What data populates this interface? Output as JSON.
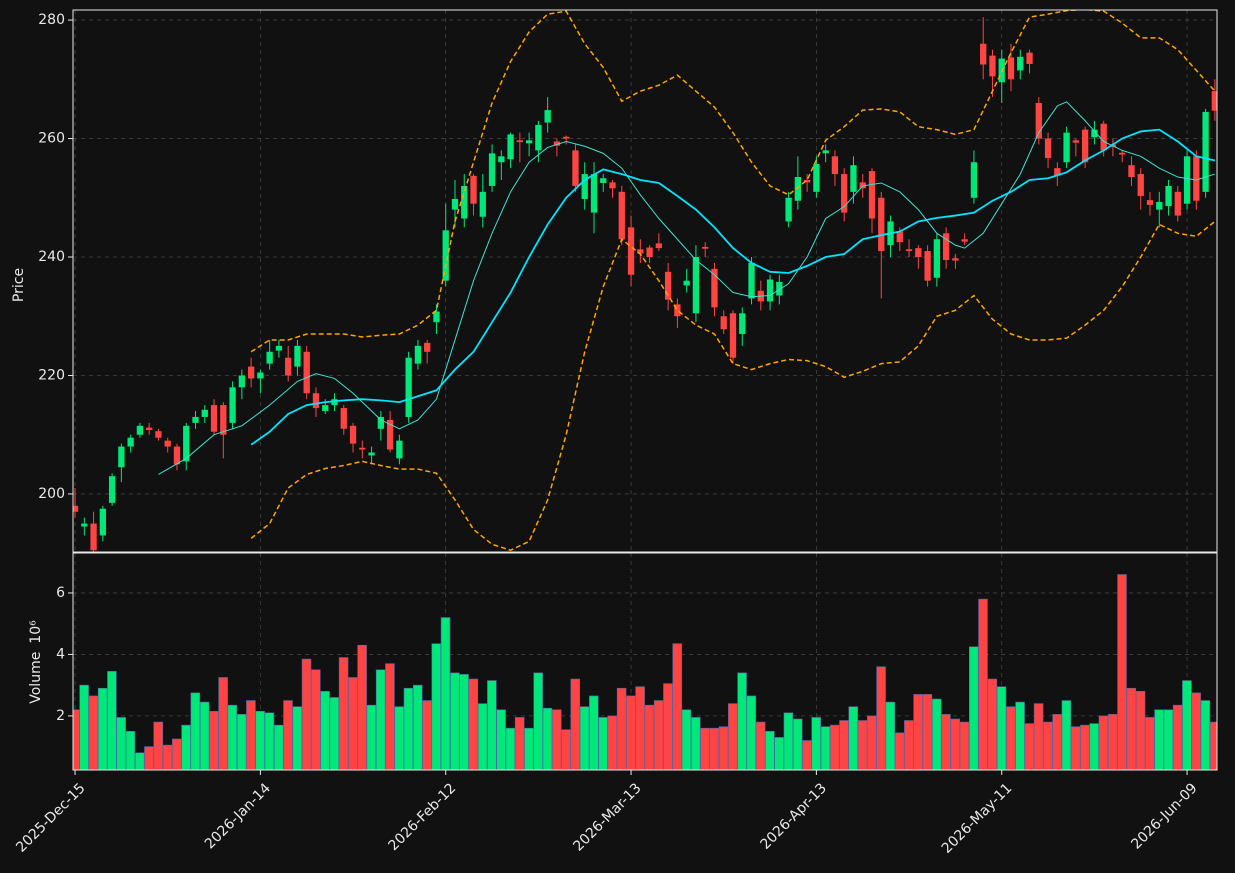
{
  "chart_data": {
    "type": "candlestick",
    "ylabel": "Price",
    "xlim": [
      -0.22,
      123.23
    ],
    "xticks": [
      {
        "value": 0,
        "label": "2025-Dec-15"
      },
      {
        "value": 20,
        "label": "2026-Jan-14"
      },
      {
        "value": 40,
        "label": "2026-Feb-12"
      },
      {
        "value": 60,
        "label": "2026-Mar-13"
      },
      {
        "value": 80,
        "label": "2026-Apr-13"
      },
      {
        "value": 100,
        "label": "2026-May-11"
      },
      {
        "value": 120,
        "label": "2026-Jun-09"
      }
    ],
    "ylim": [
      190.2,
      281.7
    ],
    "yticks": [
      200,
      220,
      240,
      260,
      280
    ],
    "grid": true,
    "up_color": "#00e87a",
    "down_color": "#ff4444",
    "open": [
      198,
      194.5,
      195,
      193,
      198.5,
      204.5,
      208,
      210,
      211.2,
      210.6,
      209,
      208,
      205.5,
      212,
      213,
      215,
      215,
      212,
      218,
      221.5,
      219.5,
      222,
      224.2,
      223,
      221.5,
      224,
      217,
      214,
      215,
      214.5,
      211.5,
      207.8,
      206.5,
      211,
      212.5,
      206,
      213,
      222,
      225.5,
      229,
      236,
      248,
      246.5,
      253.7,
      246.8,
      252,
      256,
      256.5,
      259.7,
      259.2,
      258,
      262.7,
      259.5,
      260.3,
      258,
      249.8,
      247.5,
      252.5,
      252.6,
      251,
      245,
      241.3,
      241.6,
      242.3,
      237.5,
      232,
      235.2,
      230.5,
      241.7,
      238,
      230,
      230.5,
      227,
      233,
      234.3,
      232.5,
      233.5,
      246,
      249.5,
      253,
      251,
      257.5,
      257,
      254,
      251,
      252.6,
      254.5,
      250,
      242,
      244.3,
      241.3,
      241.5,
      241,
      236.5,
      244,
      239.8,
      243,
      250,
      276,
      274,
      269.5,
      273.7,
      271.5,
      274.5,
      266,
      260,
      255,
      256,
      259.7,
      261.5,
      260.2,
      262.5,
      259,
      257.6,
      255.5,
      254,
      249.6,
      248,
      248.6,
      251,
      249,
      257,
      251,
      268
    ],
    "high": [
      201,
      196,
      197,
      198,
      203.5,
      208.5,
      210,
      212,
      212,
      211,
      209.5,
      208.5,
      212,
      214,
      215,
      216,
      215.5,
      219,
      221,
      223,
      221,
      226,
      226,
      225,
      226,
      225,
      218,
      216,
      217,
      215,
      212,
      209,
      208,
      214,
      214,
      210,
      224,
      226,
      226,
      232,
      249,
      253,
      254,
      254,
      254,
      259,
      258,
      261,
      261,
      261,
      263,
      267,
      260,
      260.5,
      259,
      256,
      256,
      254,
      253,
      252,
      247,
      243,
      242,
      244,
      239,
      233,
      238,
      242,
      242.5,
      239,
      231,
      231,
      231.5,
      240,
      236,
      237,
      237,
      251,
      257,
      254,
      257,
      259,
      258,
      255,
      257,
      254,
      255,
      251,
      247,
      245,
      243,
      242,
      242,
      244,
      245,
      240.5,
      244,
      258,
      280.5,
      275,
      275,
      276,
      275,
      275,
      267,
      261,
      256,
      262,
      260,
      262,
      263,
      263,
      260,
      258,
      257,
      255,
      251,
      251,
      253,
      252,
      258,
      258,
      265,
      270
    ],
    "low": [
      196,
      193,
      190,
      192,
      198,
      202,
      207,
      209.5,
      210,
      209,
      207,
      204,
      204,
      211,
      212,
      210,
      206,
      211,
      216,
      218,
      217,
      221,
      223,
      219,
      220,
      216,
      213,
      213.5,
      214,
      210,
      207,
      206,
      205,
      209,
      207,
      205,
      212,
      221,
      222,
      227,
      235,
      245,
      245,
      247,
      245,
      251,
      253,
      255,
      256,
      257,
      256,
      261,
      257,
      259,
      251,
      248,
      244,
      251,
      250,
      242,
      235,
      239,
      239,
      241,
      231,
      228,
      234,
      229,
      240,
      230,
      227,
      222,
      225,
      232,
      231,
      231,
      232,
      245,
      248,
      251,
      250,
      256,
      252,
      246,
      249,
      250,
      244,
      233,
      240,
      241,
      240,
      238,
      235,
      235,
      238,
      238,
      242,
      249,
      270,
      267,
      266,
      268,
      270,
      271,
      259,
      255,
      252,
      255,
      257,
      255,
      259,
      257,
      257,
      256,
      252,
      248,
      247,
      245,
      247,
      246,
      248,
      248,
      250,
      263
    ],
    "close": [
      197,
      195,
      190.5,
      197.5,
      203,
      208,
      209.5,
      211.5,
      210.8,
      209.5,
      208,
      205,
      211.5,
      213,
      214.2,
      210.5,
      210,
      218,
      220,
      219.5,
      220.5,
      224,
      225,
      220,
      225,
      217,
      214.5,
      215,
      216,
      211,
      208.5,
      207.5,
      207,
      213,
      207.5,
      209,
      223,
      225,
      224,
      230.8,
      244.5,
      249.8,
      252,
      249,
      251,
      257.5,
      257,
      260.7,
      259.4,
      259.7,
      262.3,
      264.8,
      258.8,
      260,
      252,
      254,
      254,
      253.3,
      251.6,
      243,
      237,
      240.6,
      240,
      241.5,
      232.8,
      230,
      236,
      240,
      241.4,
      231.5,
      227.8,
      223,
      230.5,
      239,
      232.5,
      236.2,
      235.8,
      250,
      253.5,
      252.6,
      255.7,
      258,
      254,
      247.5,
      255.5,
      251.6,
      246.5,
      241,
      246,
      242.5,
      241,
      240,
      236,
      243,
      239.5,
      239.4,
      242.6,
      256,
      272.5,
      270.5,
      273.5,
      270,
      273.8,
      272.6,
      260,
      256.7,
      253.8,
      261,
      259.3,
      256,
      261.5,
      258,
      258.6,
      257.3,
      253.5,
      250.3,
      248.8,
      249.3,
      252,
      247,
      257,
      249.5,
      264.5,
      264.7
    ],
    "lines": [
      {
        "color": "#40e0d0",
        "width": 1,
        "dash": false,
        "x": [
          9,
          12,
          15,
          18,
          21,
          24,
          26,
          28,
          30,
          33,
          35,
          37,
          39,
          41,
          43,
          45,
          47,
          49,
          51,
          53,
          55,
          57,
          59,
          61,
          63,
          65,
          67,
          69,
          71,
          73,
          75,
          77,
          79,
          81,
          83,
          85,
          87,
          89,
          91,
          93,
          95,
          96,
          98,
          100,
          102,
          104,
          106,
          107,
          109,
          111,
          113,
          115,
          117,
          119,
          121,
          123
        ],
        "values": [
          203.3,
          206,
          210,
          211.5,
          215,
          219,
          220.3,
          219.5,
          217,
          212.5,
          211,
          212.5,
          216,
          226,
          236,
          244,
          251,
          256,
          258.5,
          259.5,
          258.7,
          257.5,
          255,
          250.5,
          246.5,
          243,
          239.5,
          237,
          234,
          233.3,
          233.5,
          235.5,
          240,
          246.5,
          248.5,
          252,
          252.5,
          251,
          248,
          244,
          242,
          241.5,
          244,
          249,
          254,
          261,
          265.5,
          266.2,
          263,
          259.5,
          258,
          257,
          255,
          253.5,
          253,
          254
        ]
      },
      {
        "color": "#00e5ff",
        "width": 1.8,
        "dash": false,
        "x": [
          19,
          21,
          23,
          25,
          27,
          29,
          31,
          33,
          35,
          37,
          39,
          41,
          43,
          45,
          47,
          49,
          51,
          53,
          55,
          57,
          59,
          61,
          63,
          65,
          67,
          69,
          71,
          73,
          75,
          77,
          79,
          81,
          83,
          85,
          87,
          89,
          91,
          93,
          95,
          97,
          99,
          101,
          103,
          105,
          107,
          109,
          111,
          113,
          115,
          117,
          119,
          121,
          123
        ],
        "values": [
          208.3,
          210.5,
          213.5,
          215,
          215.5,
          215.8,
          216,
          215.8,
          215.5,
          216.5,
          217.5,
          221,
          224,
          229,
          234,
          240,
          245.5,
          250,
          253,
          254.8,
          254,
          253,
          252.5,
          250.3,
          248,
          245,
          241.5,
          239,
          237.5,
          237.3,
          238.5,
          240,
          240.5,
          243,
          243.7,
          244.3,
          246,
          246.6,
          247,
          247.5,
          249.5,
          251,
          253,
          253.3,
          254.3,
          256.3,
          258,
          260,
          261.2,
          261.5,
          259.5,
          257,
          256.3
        ]
      },
      {
        "color": "#ffa500",
        "width": 1.5,
        "dash": true,
        "x": [
          19,
          21,
          23,
          25,
          27,
          29,
          31,
          33,
          35,
          37,
          39,
          41,
          43,
          45,
          47,
          49,
          51,
          53,
          55,
          57,
          59,
          61,
          63,
          65,
          67,
          69,
          71,
          73,
          75,
          77,
          79,
          81,
          83,
          85,
          87,
          89,
          91,
          93,
          95,
          97,
          99,
          101,
          103,
          105,
          107,
          109,
          111,
          113,
          115,
          117,
          119,
          121,
          123
        ],
        "values": [
          224,
          226,
          226,
          227,
          227,
          227,
          226.5,
          226.8,
          227,
          228.5,
          231,
          246,
          256,
          266,
          273,
          278,
          281,
          281.5,
          276,
          272,
          266.3,
          268,
          269,
          270.7,
          268,
          265.3,
          261,
          256,
          252,
          250.5,
          253,
          259.7,
          262,
          264.8,
          265,
          264.5,
          262,
          261.5,
          260.7,
          261.5,
          268,
          274.5,
          280.5,
          281,
          281.6,
          281.8,
          281.5,
          279.5,
          277,
          277,
          275,
          271.5,
          268
        ]
      },
      {
        "color": "#ffa500",
        "width": 1.5,
        "dash": true,
        "x": [
          19,
          21,
          23,
          25,
          27,
          29,
          31,
          33,
          35,
          37,
          39,
          41,
          43,
          45,
          47,
          49,
          51,
          53,
          55,
          57,
          59,
          61,
          63,
          65,
          67,
          69,
          71,
          73,
          75,
          77,
          79,
          81,
          83,
          85,
          87,
          89,
          91,
          93,
          95,
          97,
          99,
          101,
          103,
          105,
          107,
          109,
          111,
          113,
          115,
          117,
          119,
          121,
          123
        ],
        "values": [
          192.5,
          195,
          201,
          203.3,
          204.3,
          204.8,
          205.5,
          204.8,
          204.2,
          204.2,
          203.5,
          199,
          194,
          191.5,
          190.5,
          192,
          199,
          210,
          224,
          235,
          243,
          240.5,
          236,
          231,
          228.5,
          227,
          222,
          221,
          222,
          222.7,
          222.5,
          221.5,
          219.7,
          220.7,
          222,
          222.3,
          225,
          230,
          231,
          233.5,
          229.5,
          227,
          226,
          226,
          226.3,
          228.5,
          231,
          235,
          240,
          245.5,
          244,
          243.5,
          246
        ]
      }
    ],
    "volume": {
      "label": "Volume",
      "offset": "10⁶",
      "ylim": [
        0.24,
        7.3
      ],
      "yticks": [
        2,
        4,
        6
      ],
      "values": [
        2.2,
        3.0,
        2.65,
        2.9,
        3.45,
        1.95,
        1.5,
        0.8,
        1.0,
        1.8,
        1.05,
        1.25,
        1.7,
        2.75,
        2.45,
        2.15,
        3.25,
        2.35,
        2.05,
        2.5,
        2.15,
        2.1,
        1.7,
        2.5,
        2.3,
        3.85,
        3.5,
        2.8,
        2.6,
        3.9,
        3.25,
        4.3,
        2.35,
        3.5,
        3.7,
        2.3,
        2.9,
        3.0,
        2.5,
        4.35,
        5.2,
        3.4,
        3.35,
        3.2,
        2.4,
        3.15,
        2.2,
        1.6,
        1.95,
        1.6,
        3.4,
        2.25,
        2.2,
        1.55,
        3.2,
        2.3,
        2.65,
        1.95,
        2.0,
        2.9,
        2.65,
        2.95,
        2.35,
        2.5,
        3.05,
        4.35,
        2.2,
        1.95,
        1.6,
        1.6,
        1.65,
        2.4,
        3.4,
        2.65,
        1.8,
        1.5,
        1.3,
        2.1,
        1.9,
        1.2,
        1.95,
        1.65,
        1.7,
        1.85,
        2.3,
        1.85,
        2.0,
        3.6,
        2.45,
        1.45,
        1.85,
        2.7,
        2.7,
        2.55,
        2.05,
        1.9,
        1.8,
        4.25,
        5.8,
        3.2,
        2.95,
        2.3,
        2.45,
        1.75,
        2.4,
        1.8,
        2.05,
        2.5,
        1.65,
        1.7,
        1.75,
        2.0,
        2.05,
        6.6,
        2.9,
        2.8,
        1.95,
        2.2,
        2.2,
        2.35,
        3.15,
        2.75,
        2.5,
        1.8
      ]
    }
  }
}
